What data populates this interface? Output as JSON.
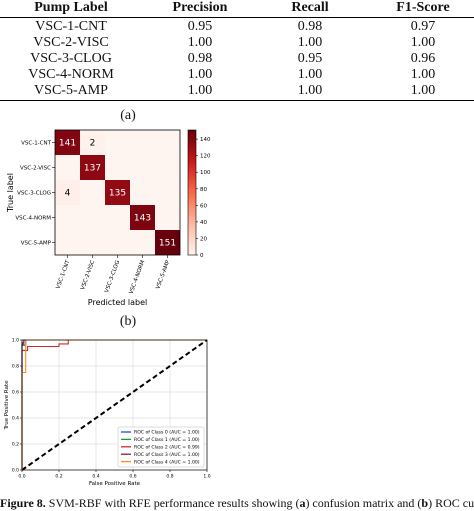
{
  "table": {
    "headers": [
      "Pump Label",
      "Precision",
      "Recall",
      "F1-Score"
    ],
    "rows": [
      [
        "VSC-1-CNT",
        "0.95",
        "0.98",
        "0.97"
      ],
      [
        "VSC-2-VISC",
        "1.00",
        "1.00",
        "1.00"
      ],
      [
        "VSC-3-CLOG",
        "0.98",
        "0.95",
        "0.96"
      ],
      [
        "VSC-4-NORM",
        "1.00",
        "1.00",
        "1.00"
      ],
      [
        "VSC-5-AMP",
        "1.00",
        "1.00",
        "1.00"
      ]
    ]
  },
  "panel_a": "(a)",
  "panel_b": "(b)",
  "caption": {
    "fig": "Figure 8.",
    "text_1": " SVM-RBF with RFE performance results showing (",
    "a": "a",
    "text_2": ") confusion matrix and (",
    "b": "b",
    "text_3": ") ROC curve."
  },
  "chart_data": [
    {
      "type": "heatmap",
      "xlabel": "Predicted label",
      "ylabel": "True label",
      "categories": [
        "VSC-1-CNT",
        "VSC-2-VISC",
        "VSC-3-CLOG",
        "VSC-4-NORM",
        "VSC-5-AMP"
      ],
      "matrix": [
        [
          141,
          2,
          0,
          0,
          0
        ],
        [
          0,
          137,
          0,
          0,
          0
        ],
        [
          4,
          0,
          135,
          0,
          0
        ],
        [
          0,
          0,
          0,
          143,
          0
        ],
        [
          0,
          0,
          0,
          0,
          151
        ]
      ],
      "cell_labels": [
        [
          "141",
          "2",
          "",
          "",
          ""
        ],
        [
          "",
          "137",
          "",
          "",
          ""
        ],
        [
          "4",
          "",
          "135",
          "",
          ""
        ],
        [
          "",
          "",
          "",
          "143",
          ""
        ],
        [
          "",
          "",
          "",
          "",
          "151"
        ]
      ],
      "colorbar_ticks": [
        "0",
        "20",
        "40",
        "60",
        "80",
        "100",
        "120",
        "140"
      ],
      "colorbar_range": [
        0,
        151
      ],
      "colormap": [
        "#fff5f0",
        "#fcbba1",
        "#fb6a4a",
        "#cb181d",
        "#67000d"
      ]
    },
    {
      "type": "line",
      "xlabel": "False Positive Rate",
      "ylabel": "True Positive Rate",
      "xlim": [
        0,
        1
      ],
      "ylim": [
        0,
        1
      ],
      "x_ticks": [
        "0.0",
        "0.2",
        "0.4",
        "0.6",
        "0.8",
        "1.0"
      ],
      "y_ticks": [
        "0.0",
        "0.2",
        "0.4",
        "0.6",
        "0.8",
        "1.0"
      ],
      "grid": true,
      "legend_position": "bottom-right",
      "series": [
        {
          "name": "ROC of Class 0 (AUC = 1.00)",
          "color": "#1f4fd8",
          "x": [
            0,
            0,
            0.02,
            0.02,
            1
          ],
          "y": [
            0,
            0.96,
            0.96,
            1,
            1
          ]
        },
        {
          "name": "ROC of Class 1 (AUC = 1.00)",
          "color": "#1a9a2a",
          "x": [
            0,
            0,
            0.01,
            0.01,
            1
          ],
          "y": [
            0,
            0.98,
            0.98,
            1,
            1
          ]
        },
        {
          "name": "ROC of Class 2 (AUC = 0.99)",
          "color": "#d62728",
          "x": [
            0,
            0,
            0.03,
            0.03,
            0.2,
            0.2,
            0.25,
            0.25,
            1
          ],
          "y": [
            0,
            0.92,
            0.92,
            0.95,
            0.95,
            0.97,
            0.97,
            1,
            1
          ]
        },
        {
          "name": "ROC of Class 3 (AUC = 1.00)",
          "color": "#8b1a4a",
          "x": [
            0,
            0,
            0.01,
            0.01,
            1
          ],
          "y": [
            0,
            0.97,
            0.97,
            1,
            1
          ]
        },
        {
          "name": "ROC of Class 4 (AUC = 1.00)",
          "color": "#ff8c1a",
          "x": [
            0,
            0,
            0.02,
            0.02,
            1
          ],
          "y": [
            0,
            0.75,
            0.75,
            1,
            1
          ]
        }
      ],
      "reference_line": {
        "x": [
          0,
          1
        ],
        "y": [
          0,
          1
        ],
        "color": "#000000",
        "style": "dashed"
      }
    }
  ]
}
